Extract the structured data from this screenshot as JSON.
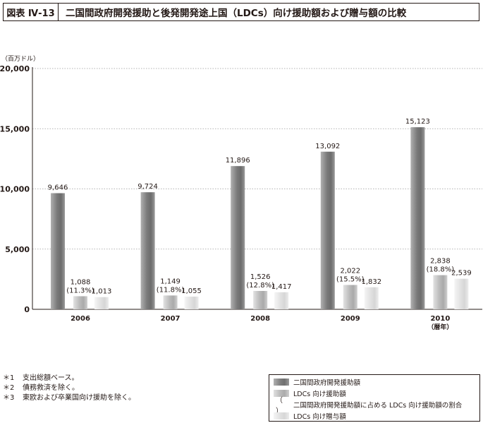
{
  "header": {
    "figure_label": "図表 Ⅳ-13",
    "title": "二国間政府開発援助と後発開発途上国（LDCs）向け援助額および贈与額の比較"
  },
  "chart_data": {
    "type": "bar",
    "unit_label": "（百万ドル）",
    "categories": [
      "2006",
      "2007",
      "2008",
      "2009",
      "2010"
    ],
    "x_unit_label": "（暦年）",
    "ylim": [
      0,
      20000
    ],
    "yticks": [
      0,
      5000,
      10000,
      15000,
      20000
    ],
    "ytick_labels": [
      "0",
      "5,000",
      "10,000",
      "15,000",
      "20,000"
    ],
    "grid": true,
    "series": [
      {
        "name": "二国間政府開発援助額",
        "values": [
          9646,
          9724,
          11896,
          13092,
          15123
        ],
        "labels": [
          "9,646",
          "9,724",
          "11,896",
          "13,092",
          "15,123"
        ]
      },
      {
        "name": "LDCs 向け援助額",
        "values": [
          1088,
          1149,
          1526,
          2022,
          2838
        ],
        "labels": [
          "1,088",
          "1,149",
          "1,526",
          "2,022",
          "2,838"
        ],
        "pct_labels": [
          "(11.3%)",
          "(11.8%)",
          "(12.8%)",
          "(15.5%)",
          "(18.8%)"
        ]
      },
      {
        "name": "LDCs 向け贈与額",
        "values": [
          1013,
          1055,
          1417,
          1832,
          2539
        ],
        "labels": [
          "1,013",
          "1,055",
          "1,417",
          "1,832",
          "2,539"
        ]
      }
    ],
    "legend_placement": "bottom-right",
    "legend_ratio_text": "二国間政府開発援助額に占める LDCs 向け援助額の割合"
  },
  "colors": {
    "series_0": [
      "#b0b0b0",
      "#7a7a7a",
      "#6c6c6c",
      "#999999"
    ],
    "series_1": [
      "#e2e2e2",
      "#bababa",
      "#aaaaaa",
      "#d0d0d0"
    ],
    "series_2": [
      "#f5f5f5",
      "#e1e1e1",
      "#d6d6d6",
      "#ededed"
    ],
    "text": "#231815"
  },
  "notes": [
    {
      "mark": "＊1",
      "text": "支出総額ベース。"
    },
    {
      "mark": "＊2",
      "text": "債務救済を除く。"
    },
    {
      "mark": "＊3",
      "text": "東欧および卒業国向け援助を除く。"
    }
  ],
  "legend": {
    "paren_mark": "（ ）"
  }
}
